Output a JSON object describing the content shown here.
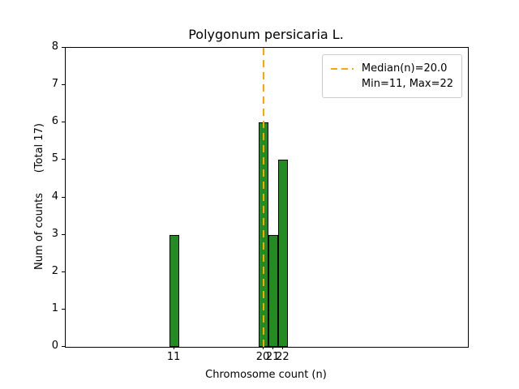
{
  "chart_data": {
    "type": "bar",
    "title": "Polygonum persicaria L.",
    "xlabel": "Chromosome count (n)",
    "ylabel": "Num of counts      (Total 17)",
    "categories": [
      11,
      20,
      21,
      22
    ],
    "values": [
      3,
      6,
      3,
      5
    ],
    "total_counts": 17,
    "median": 20.0,
    "min": 11,
    "max": 22,
    "xlim": [
      0,
      40.66
    ],
    "ylim": [
      0,
      8
    ],
    "yticks": [
      0,
      1,
      2,
      3,
      4,
      5,
      6,
      7,
      8
    ],
    "xticks": [
      11,
      20,
      21,
      22
    ],
    "bar_width": 1,
    "grid": false,
    "colors": {
      "bar_fill": "#228B22",
      "bar_edge": "#000000",
      "median_line": "#FFA500",
      "axis": "#000000",
      "legend_border": "#CCCCCC",
      "background": "#FFFFFF"
    },
    "legend": {
      "position": "upper right",
      "items": [
        {
          "label": "Median(n)=20.0",
          "swatch": "dashed-orange-line"
        },
        {
          "label": "Min=11, Max=22",
          "swatch": "none"
        }
      ]
    }
  }
}
